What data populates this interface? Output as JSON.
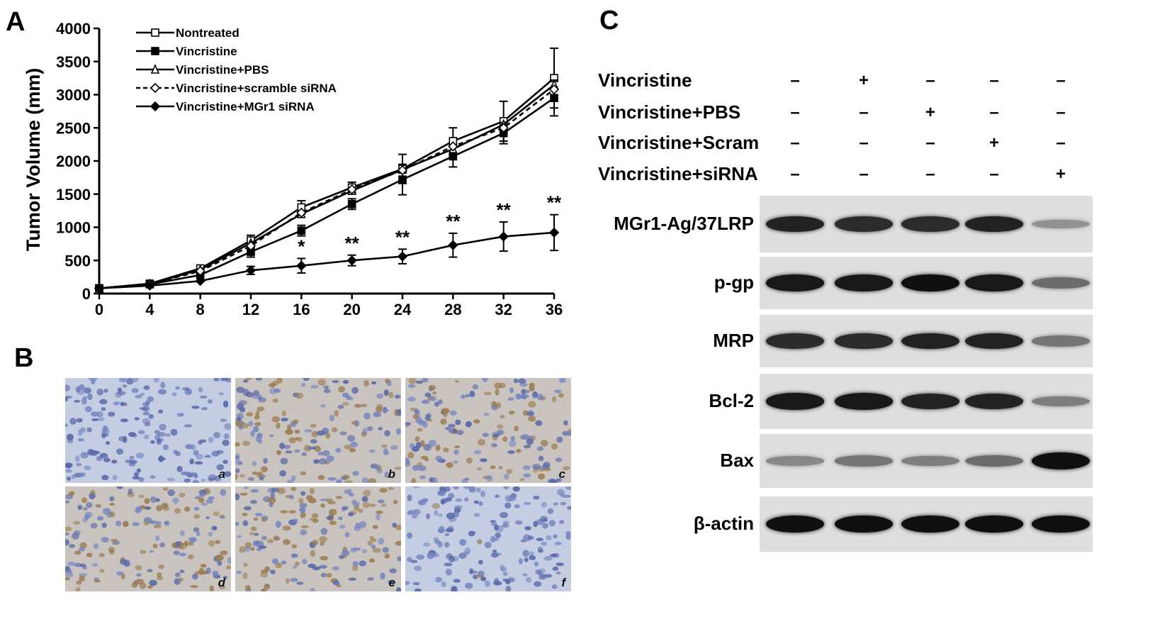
{
  "panels": {
    "a": "A",
    "b": "B",
    "c": "C"
  },
  "chart_data": {
    "type": "line",
    "ylabel": "Tumor Volume (mm)",
    "xlabel": "",
    "x": [
      0,
      4,
      8,
      12,
      16,
      20,
      24,
      28,
      32,
      36
    ],
    "xlim": [
      0,
      36
    ],
    "ylim": [
      0,
      4000
    ],
    "xticks": [
      "0",
      "4",
      "8",
      "12",
      "16",
      "20",
      "24",
      "28",
      "32",
      "36"
    ],
    "yticks": [
      "0",
      "500",
      "1000",
      "1500",
      "2000",
      "2500",
      "3000",
      "3500",
      "4000"
    ],
    "legend_position": "top-left",
    "series": [
      {
        "name": "Nontreated",
        "marker": "square-open",
        "dash": false,
        "values": [
          80,
          150,
          380,
          800,
          1300,
          1600,
          1880,
          2300,
          2600,
          3250
        ],
        "err": [
          0,
          0,
          0,
          80,
          100,
          80,
          220,
          200,
          300,
          450
        ]
      },
      {
        "name": "Vincristine",
        "marker": "square-filled",
        "dash": false,
        "values": [
          80,
          140,
          280,
          630,
          950,
          1350,
          1720,
          2070,
          2420,
          2950
        ],
        "err": [
          0,
          0,
          0,
          80,
          80,
          80,
          230,
          160,
          160,
          270
        ]
      },
      {
        "name": "Vincristine+PBS",
        "marker": "triangle-open",
        "dash": false,
        "values": [
          80,
          145,
          360,
          760,
          1200,
          1550,
          1870,
          2180,
          2550,
          3150
        ],
        "err": [
          0,
          0,
          0,
          0,
          0,
          0,
          0,
          0,
          0,
          0
        ]
      },
      {
        "name": "Vincristine+scramble siRNA",
        "marker": "diamond-open",
        "dash": true,
        "values": [
          80,
          145,
          340,
          720,
          1220,
          1570,
          1860,
          2220,
          2500,
          3080
        ],
        "err": [
          0,
          0,
          0,
          0,
          0,
          0,
          0,
          0,
          0,
          0
        ]
      },
      {
        "name": "Vincristine+MGr1 siRNA",
        "marker": "diamond-filled",
        "dash": false,
        "values": [
          80,
          120,
          190,
          350,
          420,
          500,
          560,
          730,
          860,
          920
        ],
        "err": [
          0,
          0,
          0,
          60,
          110,
          80,
          110,
          180,
          220,
          270
        ]
      }
    ],
    "annotations": [
      {
        "x": 16,
        "text": "*"
      },
      {
        "x": 20,
        "text": "**"
      },
      {
        "x": 24,
        "text": "**"
      },
      {
        "x": 28,
        "text": "**"
      },
      {
        "x": 32,
        "text": "**"
      },
      {
        "x": 36,
        "text": "**"
      }
    ]
  },
  "ihc": {
    "images": [
      {
        "label": "a",
        "stain": 0.0
      },
      {
        "label": "b",
        "stain": 0.7
      },
      {
        "label": "c",
        "stain": 0.6
      },
      {
        "label": "d",
        "stain": 0.8
      },
      {
        "label": "e",
        "stain": 0.9
      },
      {
        "label": "f",
        "stain": 0.05
      }
    ]
  },
  "western": {
    "conditions": [
      {
        "label": "Vincristine",
        "signs": [
          "–",
          "+",
          "–",
          "–",
          "–"
        ]
      },
      {
        "label": "Vincristine+PBS",
        "signs": [
          "–",
          "–",
          "+",
          "–",
          "–"
        ]
      },
      {
        "label": "Vincristine+Scram",
        "signs": [
          "–",
          "–",
          "–",
          "+",
          "–"
        ]
      },
      {
        "label": "Vincristine+siRNA",
        "signs": [
          "–",
          "–",
          "–",
          "–",
          "+"
        ]
      }
    ],
    "blots": [
      {
        "label": "MGr1-Ag/37LRP",
        "intensities": [
          0.9,
          0.85,
          0.85,
          0.9,
          0.3
        ]
      },
      {
        "label": "p-gp",
        "intensities": [
          0.95,
          0.95,
          1.0,
          0.95,
          0.5
        ]
      },
      {
        "label": "MRP",
        "intensities": [
          0.85,
          0.85,
          0.9,
          0.9,
          0.45
        ]
      },
      {
        "label": "Bcl-2",
        "intensities": [
          0.95,
          0.95,
          0.9,
          0.9,
          0.4
        ]
      },
      {
        "label": "Bax",
        "intensities": [
          0.35,
          0.45,
          0.4,
          0.5,
          1.0
        ]
      },
      {
        "label": "β-actin",
        "intensities": [
          1.0,
          1.0,
          1.0,
          1.0,
          1.0
        ]
      }
    ]
  }
}
